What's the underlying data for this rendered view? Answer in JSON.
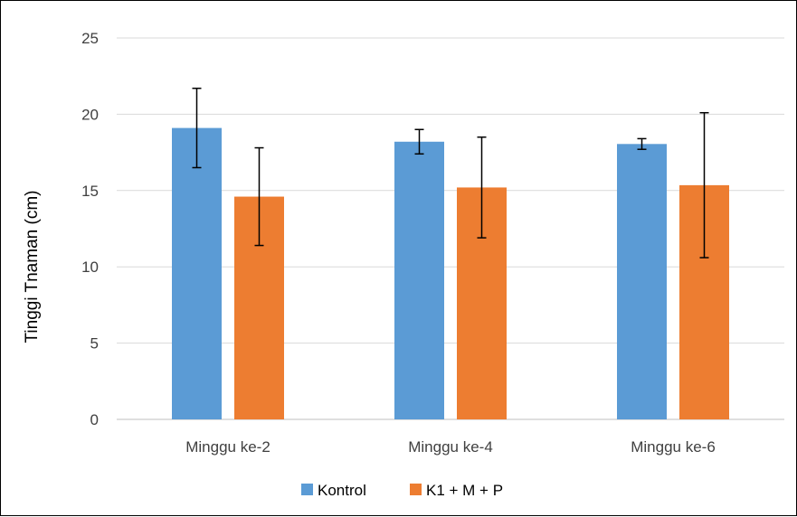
{
  "chart_data": {
    "type": "bar",
    "categories": [
      "Minggu ke-2",
      "Minggu ke-4",
      "Minggu ke-6"
    ],
    "series": [
      {
        "name": "Kontrol",
        "color": "#5b9bd5",
        "values": [
          19.1,
          18.2,
          18.05
        ],
        "error_low": [
          16.5,
          17.4,
          17.7
        ],
        "error_high": [
          21.7,
          19.0,
          18.4
        ]
      },
      {
        "name": "K1 + M + P",
        "color": "#ed7d31",
        "values": [
          14.6,
          15.2,
          15.35
        ],
        "error_low": [
          11.4,
          11.9,
          10.6
        ],
        "error_high": [
          17.8,
          18.5,
          20.1
        ]
      }
    ],
    "title": "",
    "xlabel": "",
    "ylabel": "Tinggi Tnaman (cm)",
    "ylim": [
      0,
      25
    ],
    "yticks": [
      0,
      5,
      10,
      15,
      20,
      25
    ],
    "grid": true,
    "legend": "bottom"
  }
}
